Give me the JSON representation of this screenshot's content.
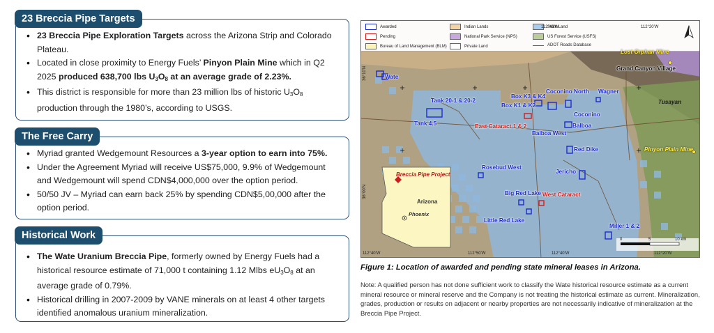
{
  "sections": [
    {
      "title": "23 Breccia Pipe Targets",
      "bullets": [
        {
          "parts": [
            {
              "t": "23 Breccia Pipe Exploration Targets",
              "b": true
            },
            {
              "t": " across the Arizona Strip and Colorado Plateau."
            }
          ]
        },
        {
          "parts": [
            {
              "t": "Located in close proximity to Energy Fuels’ "
            },
            {
              "t": "Pinyon Plain Mine",
              "b": true
            },
            {
              "t": " which in Q2 2025 "
            },
            {
              "t": "produced 638,700 lbs U",
              "b": true
            },
            {
              "t": "3",
              "b": true,
              "sub": true
            },
            {
              "t": "O",
              "b": true
            },
            {
              "t": "8",
              "b": true,
              "sub": true
            },
            {
              "t": " at an average grade of 2.23%.",
              "b": true
            }
          ]
        },
        {
          "parts": [
            {
              "t": "This district is responsible for more than 23 million lbs of historic U"
            },
            {
              "t": "3",
              "sub": true
            },
            {
              "t": "O"
            },
            {
              "t": "8",
              "sub": true
            },
            {
              "t": " production through the 1980’s, according to USGS."
            }
          ]
        }
      ]
    },
    {
      "title": "The Free Carry",
      "bullets": [
        {
          "parts": [
            {
              "t": "Myriad granted Wedgemount Resources a "
            },
            {
              "t": "3-year option to earn into 75%.",
              "b": true
            }
          ]
        },
        {
          "parts": [
            {
              "t": "Under the Agreement Myriad will receive US$75,000, 9.9% of Wedgemount and Wedgemount will spend CDN$4,000,000 over the option period."
            }
          ]
        },
        {
          "parts": [
            {
              "t": "50/50 JV – Myriad can earn back 25% by spending CDN$5,00,000 after the option period."
            }
          ]
        }
      ]
    },
    {
      "title": "Historical Work",
      "bullets": [
        {
          "parts": [
            {
              "t": "The Wate Uranium Breccia Pipe",
              "b": true
            },
            {
              "t": ", formerly owned by Energy Fuels had a historical resource estimate of 71,000 t containing 1.12 Mlbs eU"
            },
            {
              "t": "3",
              "sub": true
            },
            {
              "t": "O"
            },
            {
              "t": "8",
              "sub": true
            },
            {
              "t": " at an average grade of 0.79%."
            }
          ]
        },
        {
          "parts": [
            {
              "t": "Historical drilling in 2007-2009 by VANE minerals on at least 4 other targets identified anomalous uranium mineralization."
            }
          ]
        }
      ]
    }
  ],
  "map": {
    "legend": [
      {
        "label": "Awarded",
        "color": "#1b2bd0",
        "style": "outline"
      },
      {
        "label": "Indian Lands",
        "color": "#f2d3a5",
        "style": "fill"
      },
      {
        "label": "State Land",
        "color": "#a8cdee",
        "style": "fill"
      },
      {
        "label": "Pending",
        "color": "#d21c1c",
        "style": "outline"
      },
      {
        "label": "National Park Service (NPS)",
        "color": "#c9a8e0",
        "style": "fill"
      },
      {
        "label": "US Forest Service (USFS)",
        "color": "#b9cf97",
        "style": "fill"
      },
      {
        "label": "Bureau of Land Management (BLM)",
        "color": "#fbf4b5",
        "style": "fill"
      },
      {
        "label": "Private Land",
        "color": "#ffffff",
        "style": "fill"
      },
      {
        "label": "ADOT Roads Database",
        "color": "#7a5a3a",
        "style": "line"
      }
    ],
    "labels": {
      "wate": "Wate",
      "tank2012": "Tank 20-1 & 20-2",
      "tank45": "Tank 4.5",
      "boxk3k4": "Box K3 & K4",
      "boxk1k2": "Box K1 & K2",
      "cocoNorth": "Coconino North",
      "wagner": "Wagner",
      "coconino": "Coconino",
      "balboa": "Balboa",
      "eastCat": "East Cataract 1 & 2",
      "balboaWest": "Balboa West",
      "redDike": "Red Dike",
      "rosebud": "Rosebud West",
      "jericho": "Jericho",
      "bigRed": "Big Red Lake",
      "westCat": "West Cataract",
      "littleRed": "Little Red Lake",
      "miller": "Miller 1 & 2",
      "lostOrphan": "Lost Orphan Mine",
      "gcVillage": "Grand Canyon Village",
      "tusayan": "Tusayan",
      "pinyon": "Pinyon Plain Mine"
    },
    "inset": {
      "project": "Breccia Pipe Project",
      "state": "Arizona",
      "city": "Phoenix"
    },
    "coords": {
      "lat1": "36°10'N",
      "lat2": "36°00'N",
      "lon1": "112°40'W",
      "lon2": "112°50'W",
      "lon3": "112°40'W",
      "lon4": "112°20'W",
      "top1": "112°40'W",
      "top2": "112°20'W"
    },
    "scale": {
      "n0": "0",
      "n5": "5",
      "n10": "10 km"
    },
    "north": "N"
  },
  "caption": "Figure 1: Location of awarded and pending state mineral leases in Arizona.",
  "note": "Note: A qualified person has not done sufficient work to classify the Wate historical resource estimate as a current mineral resource or mineral reserve and the Company is not treating the historical estimate as current. Mineralization, grades, production or results on adjacent or nearby properties are not necessarily indicative of mineralization at the Breccia Pipe Project."
}
